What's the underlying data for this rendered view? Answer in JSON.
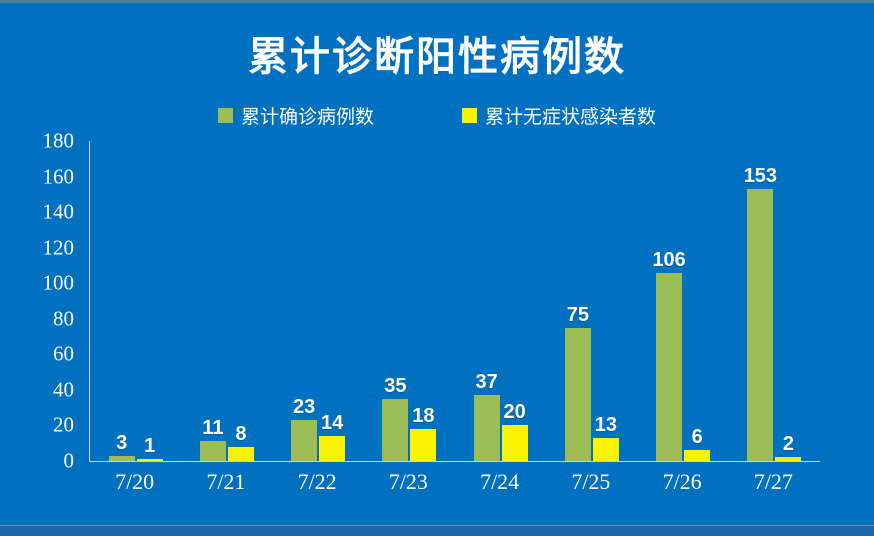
{
  "title": "累计诊断阳性病例数",
  "colors": {
    "background": "#0070C0",
    "confirmed_series": "#9CBD55",
    "asymptomatic_series": "#F8F400",
    "axis_line": "#C5D3DB",
    "text": "#FFFFFF",
    "bottom_strip": "#1B67A8",
    "top_strip": "#517E9B"
  },
  "chart_data": {
    "type": "bar",
    "title": "累计诊断阳性病例数",
    "categories": [
      "7/20",
      "7/21",
      "7/22",
      "7/23",
      "7/24",
      "7/25",
      "7/26",
      "7/27"
    ],
    "series": [
      {
        "name": "累计确诊病例数",
        "color": "#9CBD55",
        "values": [
          3,
          11,
          23,
          35,
          37,
          75,
          106,
          153
        ]
      },
      {
        "name": "累计无症状感染者数",
        "color": "#F8F400",
        "values": [
          1,
          8,
          14,
          18,
          20,
          13,
          6,
          2
        ]
      }
    ],
    "xlabel": "",
    "ylabel": "",
    "ylim": [
      0,
      180
    ],
    "yticks": [
      0,
      20,
      40,
      60,
      80,
      100,
      120,
      140,
      160,
      180
    ],
    "grid": false,
    "legend_position": "top",
    "data_labels": true
  }
}
